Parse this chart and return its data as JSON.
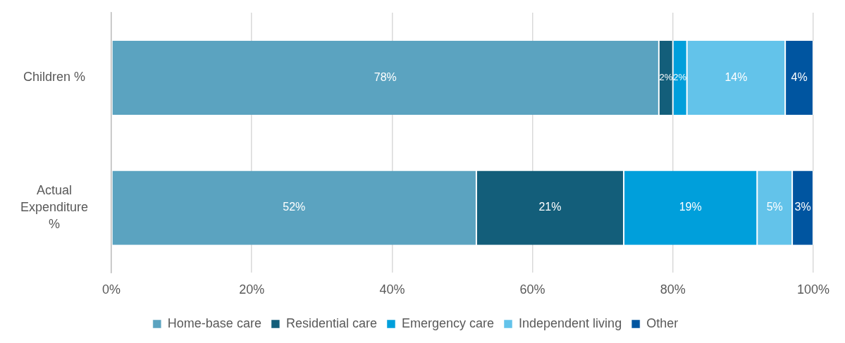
{
  "chart_data": {
    "type": "bar",
    "orientation": "horizontal",
    "stacked": true,
    "categories": [
      "Children %",
      "Actual Expenditure %"
    ],
    "series": [
      {
        "name": "Home-base care",
        "color": "#5ba3c0",
        "values": [
          78,
          52
        ],
        "value_labels": [
          "78%",
          "52%"
        ]
      },
      {
        "name": "Residential care",
        "color": "#135e7a",
        "values": [
          2,
          21
        ],
        "value_labels": [
          "2%",
          "21%"
        ]
      },
      {
        "name": "Emergency care",
        "color": "#009fdb",
        "values": [
          2,
          19
        ],
        "value_labels": [
          "2%",
          "19%"
        ]
      },
      {
        "name": "Independent living",
        "color": "#63c3ea",
        "values": [
          14,
          5
        ],
        "value_labels": [
          "14%",
          "5%"
        ]
      },
      {
        "name": "Other",
        "color": "#0055a0",
        "values": [
          4,
          3
        ],
        "value_labels": [
          "4%",
          "3%"
        ]
      }
    ],
    "xlim": [
      0,
      100
    ],
    "xticks": [
      {
        "value": 0,
        "label": "0%"
      },
      {
        "value": 20,
        "label": "20%"
      },
      {
        "value": 40,
        "label": "40%"
      },
      {
        "value": 60,
        "label": "60%"
      },
      {
        "value": 80,
        "label": "80%"
      },
      {
        "value": 100,
        "label": "100%"
      }
    ],
    "grid": "x",
    "legend": "bottom",
    "marker": "square"
  }
}
